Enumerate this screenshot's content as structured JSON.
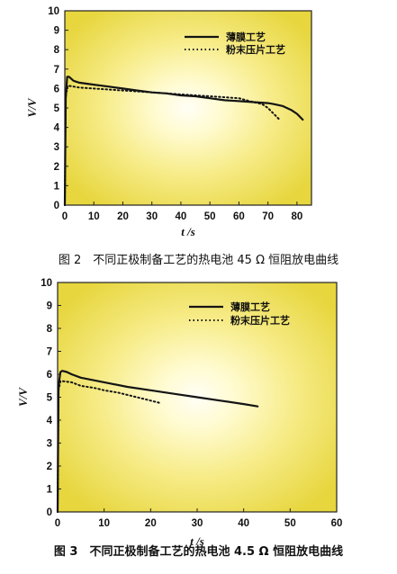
{
  "chart_data": [
    {
      "type": "line",
      "xlabel": "t /s",
      "ylabel": "V/V",
      "xlim": [
        0,
        85
      ],
      "ylim": [
        0,
        10
      ],
      "xticks": [
        0,
        10,
        20,
        30,
        40,
        50,
        60,
        70,
        80
      ],
      "yticks": [
        0,
        1,
        2,
        3,
        4,
        5,
        6,
        7,
        8,
        9,
        10
      ],
      "legend_position": "top-right",
      "series": [
        {
          "name": "薄膜工艺",
          "style": "solid",
          "x": [
            0,
            0.3,
            0.8,
            1.5,
            3,
            5,
            10,
            15,
            20,
            25,
            30,
            35,
            40,
            45,
            50,
            55,
            60,
            65,
            70,
            72,
            75,
            78,
            80,
            82
          ],
          "y": [
            0,
            5.5,
            6.6,
            6.6,
            6.4,
            6.3,
            6.2,
            6.1,
            6.0,
            5.9,
            5.8,
            5.75,
            5.65,
            5.6,
            5.5,
            5.4,
            5.35,
            5.3,
            5.25,
            5.2,
            5.1,
            4.9,
            4.7,
            4.4
          ]
        },
        {
          "name": "粉末压片工艺",
          "style": "dotted",
          "x": [
            0,
            0.3,
            1,
            3,
            5,
            10,
            15,
            20,
            25,
            30,
            35,
            40,
            45,
            50,
            55,
            60,
            65,
            68,
            70,
            72,
            74
          ],
          "y": [
            0,
            5.6,
            6.15,
            6.1,
            6.05,
            6.0,
            5.95,
            5.9,
            5.85,
            5.8,
            5.75,
            5.7,
            5.65,
            5.6,
            5.55,
            5.5,
            5.3,
            5.2,
            5.0,
            4.7,
            4.4
          ]
        }
      ]
    },
    {
      "type": "line",
      "xlabel": "t /s",
      "ylabel": "V/V",
      "xlim": [
        0,
        60
      ],
      "ylim": [
        0,
        10
      ],
      "xticks": [
        0,
        10,
        20,
        30,
        40,
        50,
        60
      ],
      "yticks": [
        0,
        1,
        2,
        3,
        4,
        5,
        6,
        7,
        8,
        9,
        10
      ],
      "legend_position": "top-right",
      "series": [
        {
          "name": "薄膜工艺",
          "style": "solid",
          "x": [
            0,
            0.2,
            0.6,
            1,
            2,
            3,
            5,
            10,
            15,
            20,
            25,
            30,
            35,
            40,
            43
          ],
          "y": [
            0,
            5.5,
            6.1,
            6.15,
            6.1,
            6.0,
            5.85,
            5.65,
            5.45,
            5.3,
            5.15,
            5.0,
            4.85,
            4.7,
            4.6
          ]
        },
        {
          "name": "粉末压片工艺",
          "style": "dotted",
          "x": [
            0,
            0.2,
            0.6,
            1,
            3,
            5,
            8,
            10,
            13,
            16,
            19,
            22
          ],
          "y": [
            0,
            5.3,
            5.7,
            5.7,
            5.65,
            5.5,
            5.4,
            5.3,
            5.2,
            5.05,
            4.9,
            4.75
          ]
        }
      ]
    }
  ],
  "captions": [
    "图 2　不同正极制备工艺的热电池 45 Ω 恒阻放电曲线",
    "图 3　不同正极制备工艺的热电池 4.5 Ω 恒阻放电曲线"
  ]
}
